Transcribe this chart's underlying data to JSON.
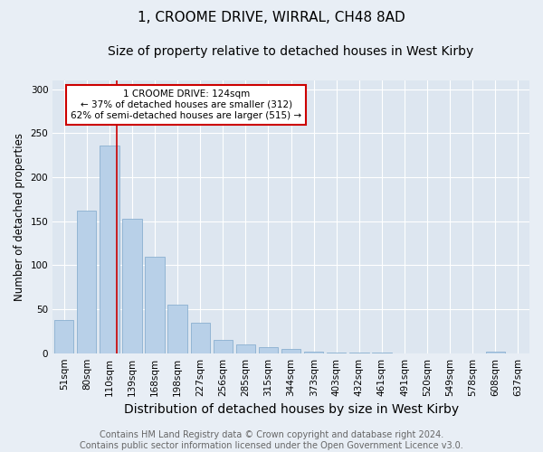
{
  "title": "1, CROOME DRIVE, WIRRAL, CH48 8AD",
  "subtitle": "Size of property relative to detached houses in West Kirby",
  "xlabel": "Distribution of detached houses by size in West Kirby",
  "ylabel": "Number of detached properties",
  "categories": [
    "51sqm",
    "80sqm",
    "110sqm",
    "139sqm",
    "168sqm",
    "198sqm",
    "227sqm",
    "256sqm",
    "285sqm",
    "315sqm",
    "344sqm",
    "373sqm",
    "403sqm",
    "432sqm",
    "461sqm",
    "491sqm",
    "520sqm",
    "549sqm",
    "578sqm",
    "608sqm",
    "637sqm"
  ],
  "values": [
    38,
    162,
    236,
    153,
    110,
    55,
    35,
    15,
    10,
    7,
    5,
    2,
    1,
    1,
    1,
    0,
    0,
    0,
    0,
    2,
    0
  ],
  "bar_color": "#b8d0e8",
  "bar_edge_color": "#8ab0d0",
  "property_line_x": 2.33,
  "annotation_text": "1 CROOME DRIVE: 124sqm\n← 37% of detached houses are smaller (312)\n62% of semi-detached houses are larger (515) →",
  "annotation_box_color": "#ffffff",
  "annotation_box_edge_color": "#cc0000",
  "red_line_color": "#cc0000",
  "ylim": [
    0,
    310
  ],
  "yticks": [
    0,
    50,
    100,
    150,
    200,
    250,
    300
  ],
  "background_color": "#dde6f0",
  "fig_background_color": "#e8eef5",
  "grid_color": "#ffffff",
  "footer_text": "Contains HM Land Registry data © Crown copyright and database right 2024.\nContains public sector information licensed under the Open Government Licence v3.0.",
  "title_fontsize": 11,
  "subtitle_fontsize": 10,
  "xlabel_fontsize": 10,
  "ylabel_fontsize": 8.5,
  "tick_fontsize": 7.5,
  "annotation_fontsize": 7.5,
  "footer_fontsize": 7
}
